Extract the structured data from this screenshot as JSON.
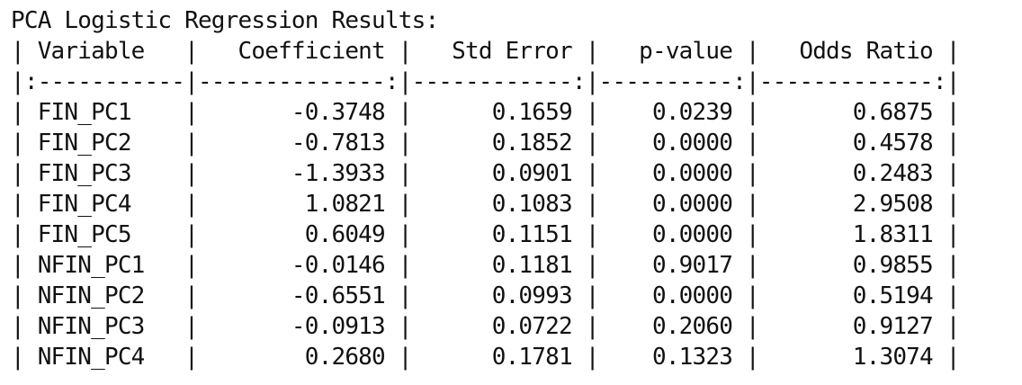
{
  "title": "PCA Logistic Regression Results:",
  "table": {
    "headers": [
      "Variable",
      "Coefficient",
      "Std Error",
      "p-value",
      "Odds Ratio"
    ],
    "header_line": "| Variable   |   Coefficient |   Std Error |   p-value |   Odds Ratio |",
    "separator_line": "|:-----------|--------------:|------------:|----------:|-------------:|",
    "rows": [
      {
        "variable": "FIN_PC1",
        "coefficient": "-0.3748",
        "std_error": "0.1659",
        "p_value": "0.0239",
        "odds_ratio": "0.6875",
        "line": "| FIN_PC1    |       -0.3748 |      0.1659 |    0.0239 |       0.6875 |"
      },
      {
        "variable": "FIN_PC2",
        "coefficient": "-0.7813",
        "std_error": "0.1852",
        "p_value": "0.0000",
        "odds_ratio": "0.4578",
        "line": "| FIN_PC2    |       -0.7813 |      0.1852 |    0.0000 |       0.4578 |"
      },
      {
        "variable": "FIN_PC3",
        "coefficient": "-1.3933",
        "std_error": "0.0901",
        "p_value": "0.0000",
        "odds_ratio": "0.2483",
        "line": "| FIN_PC3    |       -1.3933 |      0.0901 |    0.0000 |       0.2483 |"
      },
      {
        "variable": "FIN_PC4",
        "coefficient": "1.0821",
        "std_error": "0.1083",
        "p_value": "0.0000",
        "odds_ratio": "2.9508",
        "line": "| FIN_PC4    |        1.0821 |      0.1083 |    0.0000 |       2.9508 |"
      },
      {
        "variable": "FIN_PC5",
        "coefficient": "0.6049",
        "std_error": "0.1151",
        "p_value": "0.0000",
        "odds_ratio": "1.8311",
        "line": "| FIN_PC5    |        0.6049 |      0.1151 |    0.0000 |       1.8311 |"
      },
      {
        "variable": "NFIN_PC1",
        "coefficient": "-0.0146",
        "std_error": "0.1181",
        "p_value": "0.9017",
        "odds_ratio": "0.9855",
        "line": "| NFIN_PC1   |       -0.0146 |      0.1181 |    0.9017 |       0.9855 |"
      },
      {
        "variable": "NFIN_PC2",
        "coefficient": "-0.6551",
        "std_error": "0.0993",
        "p_value": "0.0000",
        "odds_ratio": "0.5194",
        "line": "| NFIN_PC2   |       -0.6551 |      0.0993 |    0.0000 |       0.5194 |"
      },
      {
        "variable": "NFIN_PC3",
        "coefficient": "-0.0913",
        "std_error": "0.0722",
        "p_value": "0.2060",
        "odds_ratio": "0.9127",
        "line": "| NFIN_PC3   |       -0.0913 |      0.0722 |    0.2060 |       0.9127 |"
      },
      {
        "variable": "NFIN_PC4",
        "coefficient": "0.2680",
        "std_error": "0.1781",
        "p_value": "0.1323",
        "odds_ratio": "1.3074",
        "line": "| NFIN_PC4   |        0.2680 |      0.1781 |    0.1323 |       1.3074 |"
      }
    ]
  }
}
